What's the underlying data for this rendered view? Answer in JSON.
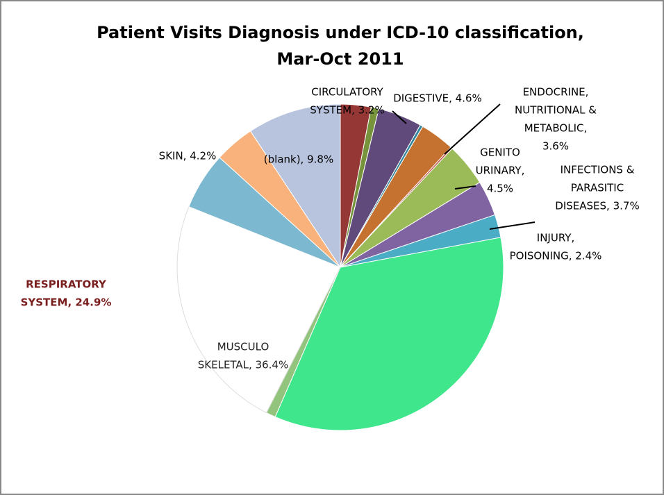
{
  "chart_data": {
    "type": "pie",
    "title": [
      "Patient Visits Diagnosis under ICD-10 classification,",
      "Mar-Oct 2011"
    ],
    "labels": [
      [
        "CIRCULATORY",
        "SYSTEM, 3.2%"
      ],
      null,
      [
        "DIGESTIVE, 4.6%"
      ],
      null,
      [
        "ENDOCRINE,",
        "NUTRITIONAL &",
        "METABOLIC,",
        "3.6%"
      ],
      null,
      [
        "GENITO",
        "URINARY,",
        "4.5%"
      ],
      [
        "INFECTIONS &",
        "PARASITIC",
        "DISEASES, 3.7%"
      ],
      [
        "INJURY,",
        "POISONING, 2.4%"
      ],
      [
        "MUSCULO",
        "SKELETAL, 36.4%"
      ],
      null,
      [
        "RESPIRATORY",
        "SYSTEM, 24.9%"
      ],
      null,
      [
        "SKIN, 4.2%"
      ],
      [
        "(blank), 9.8%"
      ]
    ],
    "values": [
      3.2,
      0.8,
      4.6,
      0.3,
      3.6,
      0.2,
      4.5,
      3.7,
      2.4,
      36.4,
      1.0,
      24.9,
      6.0,
      4.2,
      9.8
    ],
    "colors": [
      "#953735",
      "#77933c",
      "#604a7b",
      "#31859c",
      "#c57230",
      "#c0504d",
      "#9bbb59",
      "#8064a2",
      "#4bacc6",
      "#40e68c",
      "#93c47d",
      "#ffffff",
      "#7cb9d0",
      "#f9b27b",
      "#b8c4de"
    ]
  }
}
